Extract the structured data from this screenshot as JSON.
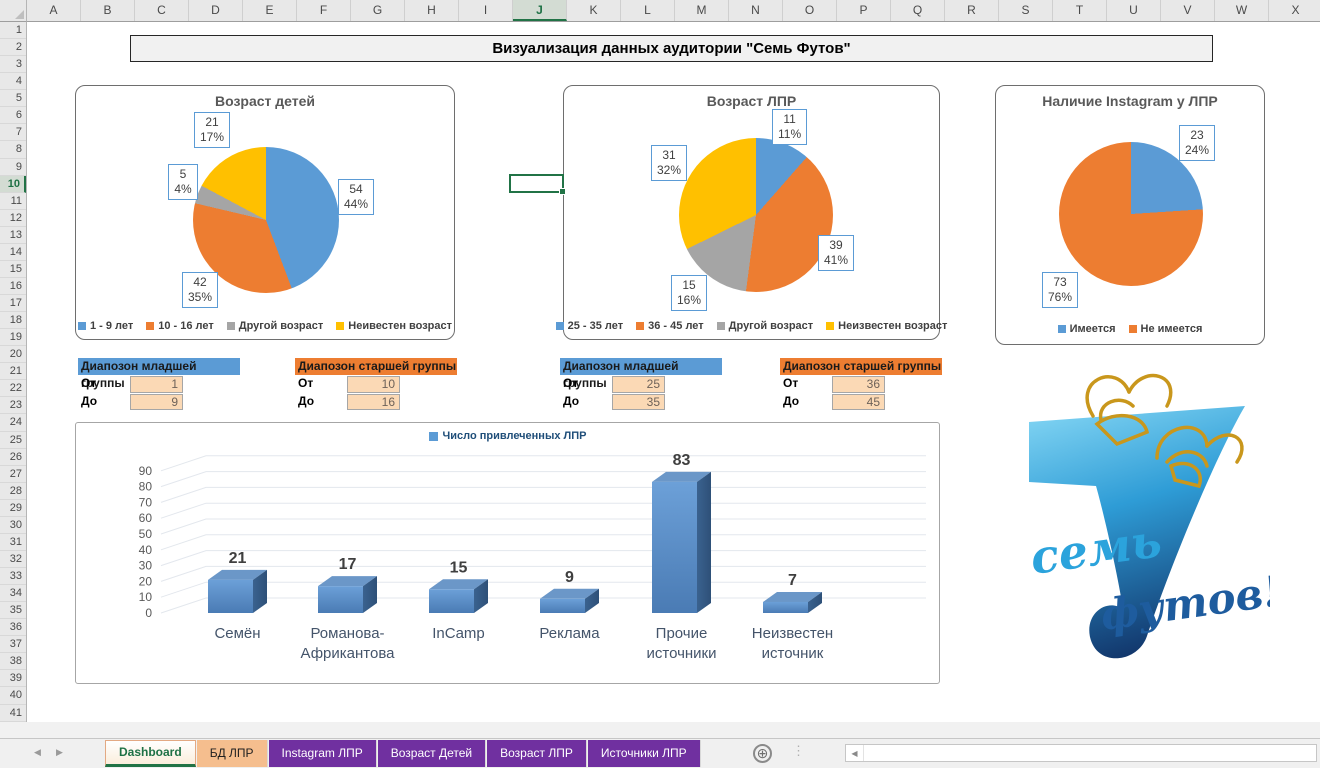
{
  "title_banner": "Визуализация данных аудитории \"Семь Футов\"",
  "spreadsheet": {
    "columns": [
      "A",
      "B",
      "C",
      "D",
      "E",
      "F",
      "G",
      "H",
      "I",
      "J",
      "K",
      "L",
      "M",
      "N",
      "O",
      "P",
      "Q",
      "R",
      "S",
      "T",
      "U",
      "V",
      "W",
      "X"
    ],
    "selected_column": "J",
    "row_count": 41,
    "selected_row": 10
  },
  "chart_data": [
    {
      "type": "pie",
      "title": "Возраст детей",
      "categories": [
        "1 - 9 лет",
        "10 - 16 лет",
        "Другой возраст",
        "Неивестен возраст"
      ],
      "values": [
        54,
        42,
        5,
        21
      ],
      "percents": [
        "44%",
        "35%",
        "4%",
        "17%"
      ],
      "colors": [
        "#5B9BD5",
        "#ED7D31",
        "#A5A5A5",
        "#FFC000"
      ],
      "legend_position": "bottom"
    },
    {
      "type": "pie",
      "title": "Возраст ЛПР",
      "categories": [
        "25 - 35 лет",
        "36 - 45 лет",
        "Другой возраст",
        "Неизвестен возраст"
      ],
      "values": [
        11,
        39,
        15,
        31
      ],
      "percents": [
        "11%",
        "41%",
        "16%",
        "32%"
      ],
      "colors": [
        "#5B9BD5",
        "#ED7D31",
        "#A5A5A5",
        "#FFC000"
      ],
      "legend_position": "bottom"
    },
    {
      "type": "pie",
      "title": "Наличие Instagram у ЛПР",
      "categories": [
        "Имеется",
        "Не имеется"
      ],
      "values": [
        23,
        73
      ],
      "percents": [
        "24%",
        "76%"
      ],
      "colors": [
        "#5B9BD5",
        "#ED7D31"
      ],
      "legend_position": "bottom"
    },
    {
      "type": "bar",
      "style": "3d",
      "legend": "Число привлеченных ЛПР",
      "categories": [
        "Семён",
        "Романова-Африкантова",
        "InCamp",
        "Реклама",
        "Прочие источники",
        "Неизвестен источник"
      ],
      "values": [
        21,
        17,
        15,
        9,
        83,
        7
      ],
      "yticks": [
        0,
        10,
        20,
        30,
        40,
        50,
        60,
        70,
        80,
        90
      ],
      "ylim": [
        0,
        90
      ],
      "grid": true,
      "bar_color": "#4E81BA",
      "legend_position": "top"
    }
  ],
  "range_tables": [
    {
      "header": "Диапозон младшей группы",
      "header_color": "#5B9BD5",
      "rows": [
        {
          "label": "От",
          "value": "1"
        },
        {
          "label": "До",
          "value": "9"
        }
      ]
    },
    {
      "header": "Диапозон старшей группы",
      "header_color": "#ED7D31",
      "rows": [
        {
          "label": "От",
          "value": "10"
        },
        {
          "label": "До",
          "value": "16"
        }
      ]
    },
    {
      "header": "Диапозон младшей группы",
      "header_color": "#5B9BD5",
      "rows": [
        {
          "label": "От",
          "value": "25"
        },
        {
          "label": "До",
          "value": "35"
        }
      ]
    },
    {
      "header": "Диапозон старшей группы",
      "header_color": "#ED7D31",
      "rows": [
        {
          "label": "От",
          "value": "36"
        },
        {
          "label": "До",
          "value": "45"
        }
      ]
    }
  ],
  "logo": {
    "numeral": "7",
    "word_top": "семь",
    "word_bottom": "футов!",
    "colors": {
      "light_blue": "#49B8E8",
      "dark_blue": "#16437F",
      "gold": "#C9971C"
    }
  },
  "sheet_tabs": {
    "tabs": [
      {
        "label": "Dashboard",
        "style": "active"
      },
      {
        "label": "БД ЛПР",
        "style": "peach"
      },
      {
        "label": "Instagram ЛПР",
        "style": "purple"
      },
      {
        "label": "Возраст Детей",
        "style": "purple"
      },
      {
        "label": "Возраст ЛПР",
        "style": "purple"
      },
      {
        "label": "Источники ЛПР",
        "style": "purple"
      }
    ],
    "add_sheet_label": "+"
  }
}
